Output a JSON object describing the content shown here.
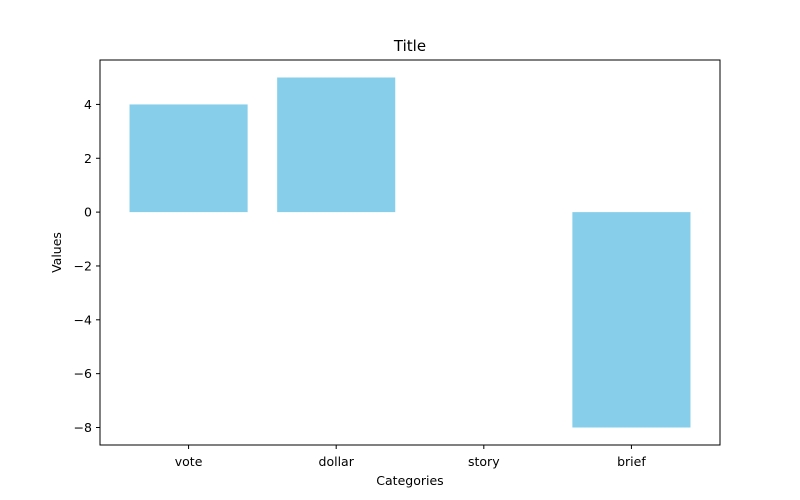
{
  "chart_data": {
    "type": "bar",
    "title": "Title",
    "xlabel": "Categories",
    "ylabel": "Values",
    "categories": [
      "vote",
      "dollar",
      "story",
      "brief"
    ],
    "values": [
      4,
      5,
      0,
      -8
    ],
    "ylim": [
      -8.65,
      5.65
    ],
    "yticks": [
      4,
      2,
      0,
      -2,
      -4,
      -6,
      -8
    ],
    "ytick_labels": [
      "4",
      "2",
      "0",
      "−2",
      "−4",
      "−6",
      "−8"
    ],
    "grid": false,
    "bar_color": "#87CEEB"
  }
}
